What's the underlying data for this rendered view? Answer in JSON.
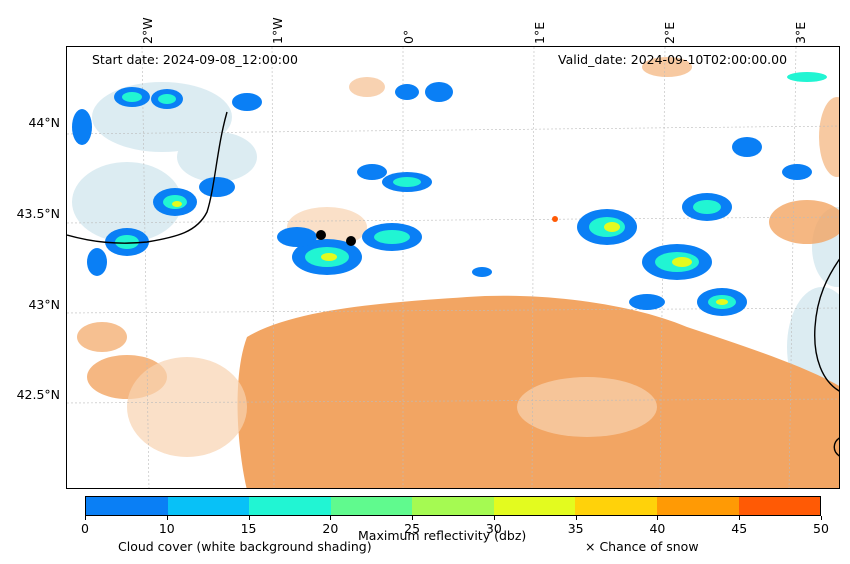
{
  "annotations": {
    "start_date": "Start date: 2024-09-08_12:00:00",
    "valid_date": "Valid_date: 2024-09-10T02:00:00.00"
  },
  "axes": {
    "lon_ticks": [
      "2°W",
      "1°W",
      "0°",
      "1°E",
      "2°E",
      "3°E"
    ],
    "lat_ticks": [
      "44°N",
      "43.5°N",
      "43°N",
      "42.5°N"
    ]
  },
  "colorbar": {
    "label": "Maximum reflectivity (dbz)",
    "ticks": [
      "0",
      "10",
      "15",
      "20",
      "25",
      "30",
      "35",
      "40",
      "45",
      "50"
    ],
    "colors": [
      "#0a7ff5",
      "#08c1f7",
      "#21f5d3",
      "#60fa8e",
      "#a5fa52",
      "#e3fb1f",
      "#ffd20a",
      "#ff9a05",
      "#ff5a05"
    ]
  },
  "legend": {
    "cloud_cover": "Cloud cover (white background shading)",
    "snow": "× Chance of snow"
  },
  "colors": {
    "precip_orange": "#f2a563",
    "cloud_light": "#d6e9f0",
    "coastline": "#000000"
  },
  "markers": [
    {
      "lon": -0.62,
      "lat": 43.37
    },
    {
      "lon": -0.38,
      "lat": 43.34
    }
  ]
}
